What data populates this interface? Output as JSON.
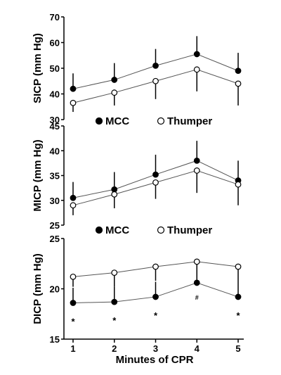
{
  "figure": {
    "xlabel": "Minutes of CPR",
    "x_ticks": [
      "1",
      "2",
      "3",
      "4",
      "5"
    ]
  },
  "chart_data": [
    {
      "type": "line",
      "ylabel": "SICP (mm Hg)",
      "ylim": [
        30,
        70
      ],
      "yticks": [
        30,
        40,
        50,
        60,
        70
      ],
      "x": [
        1,
        2,
        3,
        4,
        5
      ],
      "series": [
        {
          "name": "MCC",
          "marker": "filled-circle",
          "values": [
            42,
            45.5,
            51,
            55.5,
            49
          ],
          "error": [
            6,
            6.5,
            6.5,
            7,
            7
          ]
        },
        {
          "name": "Thumper",
          "marker": "open-circle",
          "values": [
            36.5,
            40.5,
            45,
            49.5,
            44
          ],
          "error": [
            3.5,
            5,
            7,
            8.5,
            8.5
          ]
        }
      ],
      "legend": {
        "mcc": "MCC",
        "thumper": "Thumper"
      },
      "annotations": []
    },
    {
      "type": "line",
      "ylabel": "MICP (mm Hg)",
      "ylim": [
        25,
        45
      ],
      "yticks": [
        25,
        30,
        35,
        40,
        45
      ],
      "x": [
        1,
        2,
        3,
        4,
        5
      ],
      "series": [
        {
          "name": "MCC",
          "marker": "filled-circle",
          "values": [
            30.5,
            32.2,
            35.2,
            38,
            34
          ],
          "error": [
            3.2,
            3.5,
            4,
            4,
            4
          ]
        },
        {
          "name": "Thumper",
          "marker": "open-circle",
          "values": [
            29,
            31.2,
            33.6,
            36,
            33.2
          ],
          "error": [
            2,
            2.8,
            3.3,
            4.5,
            4.2
          ]
        }
      ],
      "legend": {
        "mcc": "MCC",
        "thumper": "Thumper"
      },
      "annotations": []
    },
    {
      "type": "line",
      "ylabel": "DICP (mm Hg)",
      "ylim": [
        15,
        25
      ],
      "yticks": [
        15,
        20,
        25
      ],
      "x": [
        1,
        2,
        3,
        4,
        5
      ],
      "series": [
        {
          "name": "MCC",
          "marker": "filled-circle",
          "values": [
            18.6,
            18.7,
            19.2,
            20.6,
            19.2
          ],
          "error": [
            1.5,
            1.5,
            1.5,
            1.5,
            1.5
          ]
        },
        {
          "name": "Thumper",
          "marker": "open-circle",
          "values": [
            21.2,
            21.6,
            22.2,
            22.7,
            22.2
          ],
          "error": [
            1,
            1.4,
            1.4,
            1.5,
            1.5
          ]
        }
      ],
      "annotations": [
        "*",
        "*",
        "*",
        "#",
        "*"
      ]
    }
  ]
}
